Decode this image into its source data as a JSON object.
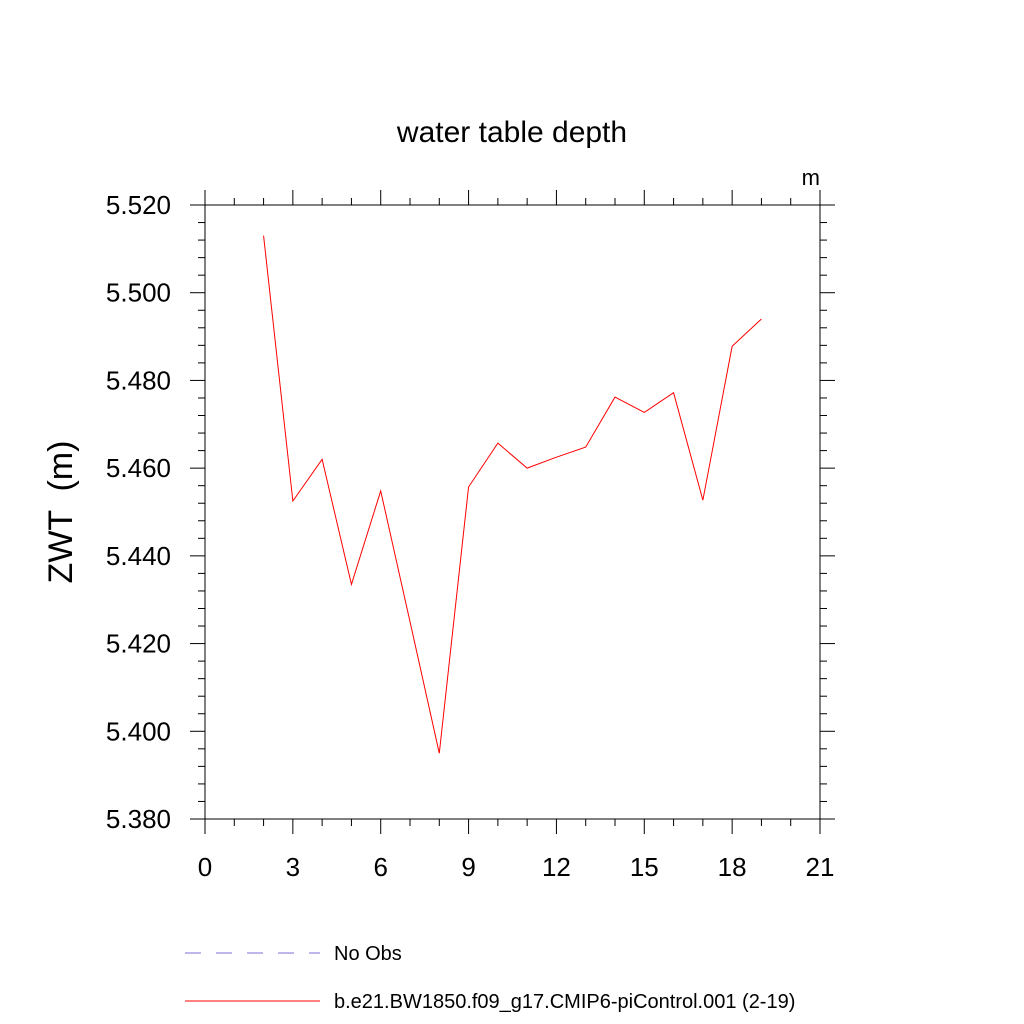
{
  "chart_data": {
    "type": "line",
    "title": "water table depth",
    "units_label": "m",
    "ylabel": "ZWT  (m)",
    "xlabel": "",
    "xlim": [
      0,
      21
    ],
    "ylim": [
      5.38,
      5.52
    ],
    "x_ticks": [
      "0",
      "3",
      "6",
      "9",
      "12",
      "15",
      "18",
      "21"
    ],
    "y_ticks": [
      "5.380",
      "5.400",
      "5.420",
      "5.440",
      "5.460",
      "5.480",
      "5.500",
      "5.520"
    ],
    "grid": false,
    "series": [
      {
        "name": "b.e21.BW1850.f09_g17.CMIP6-piControl.001 (2-19)",
        "color": "#ff0000",
        "x": [
          2,
          3,
          4,
          5,
          6,
          7,
          8,
          9,
          10,
          11,
          12,
          13,
          14,
          15,
          16,
          17,
          18,
          19
        ],
        "y": [
          5.513,
          5.4525,
          5.462,
          5.4335,
          5.4548,
          5.425,
          5.395,
          5.4557,
          5.4657,
          5.46,
          5.4625,
          5.4648,
          5.4762,
          5.4727,
          5.4772,
          5.4527,
          5.4878,
          5.494
        ]
      }
    ],
    "legend": {
      "placement": "bottom",
      "entries": [
        {
          "label": "No Obs",
          "style": "dashed",
          "color": "#7b6fd8"
        },
        {
          "label": "b.e21.BW1850.f09_g17.CMIP6-piControl.001 (2-19)",
          "style": "solid",
          "color": "#ff0000"
        }
      ]
    }
  }
}
